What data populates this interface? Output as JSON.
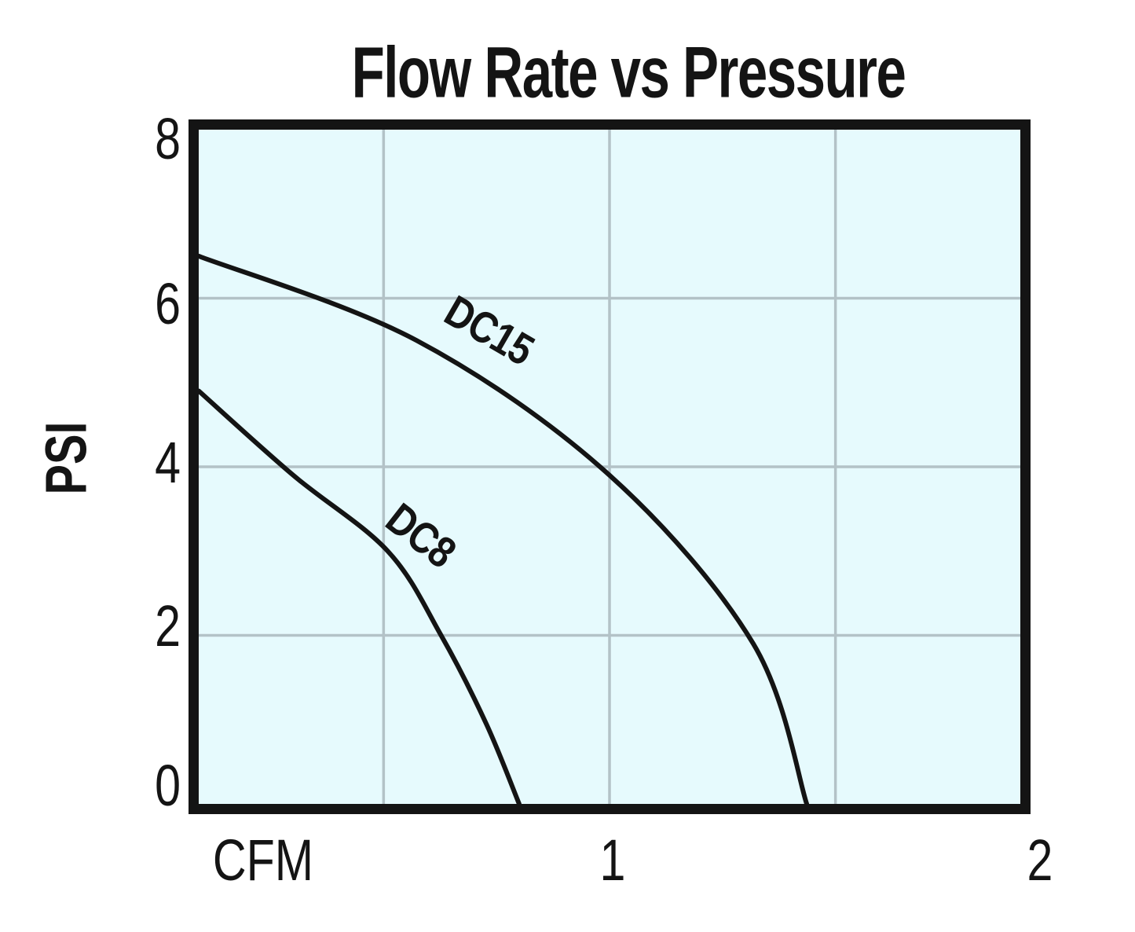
{
  "chart_data": {
    "type": "line",
    "title": "Flow Rate vs Pressure",
    "xlabel": "CFM",
    "ylabel": "PSI",
    "xlim": [
      0,
      2
    ],
    "ylim": [
      0,
      8
    ],
    "x_tick_labels": [
      "1",
      "2"
    ],
    "x_tick_values": [
      1,
      2
    ],
    "y_tick_labels": [
      "8",
      "6",
      "4",
      "2",
      "0"
    ],
    "y_tick_values": [
      8,
      6,
      4,
      2,
      0
    ],
    "grid": true,
    "grid_x_values": [
      0.45,
      1.0,
      1.55
    ],
    "grid_y_values": [
      6,
      4,
      2
    ],
    "legend_position": "labels-on-curves",
    "series": [
      {
        "name": "DC15",
        "points": [
          [
            0,
            6.5
          ],
          [
            0.53,
            5.5
          ],
          [
            1.0,
            3.9
          ],
          [
            1.35,
            1.9
          ],
          [
            1.48,
            0
          ]
        ]
      },
      {
        "name": "DC8",
        "points": [
          [
            0,
            4.9
          ],
          [
            0.23,
            3.9
          ],
          [
            0.46,
            3.0
          ],
          [
            0.59,
            2.0
          ],
          [
            0.7,
            0.95
          ],
          [
            0.78,
            0
          ]
        ]
      }
    ]
  },
  "colors": {
    "ink": "#141414",
    "gridline": "#b3c2c7",
    "plot_background": "#e6fafd",
    "page_background": "#ffffff"
  }
}
